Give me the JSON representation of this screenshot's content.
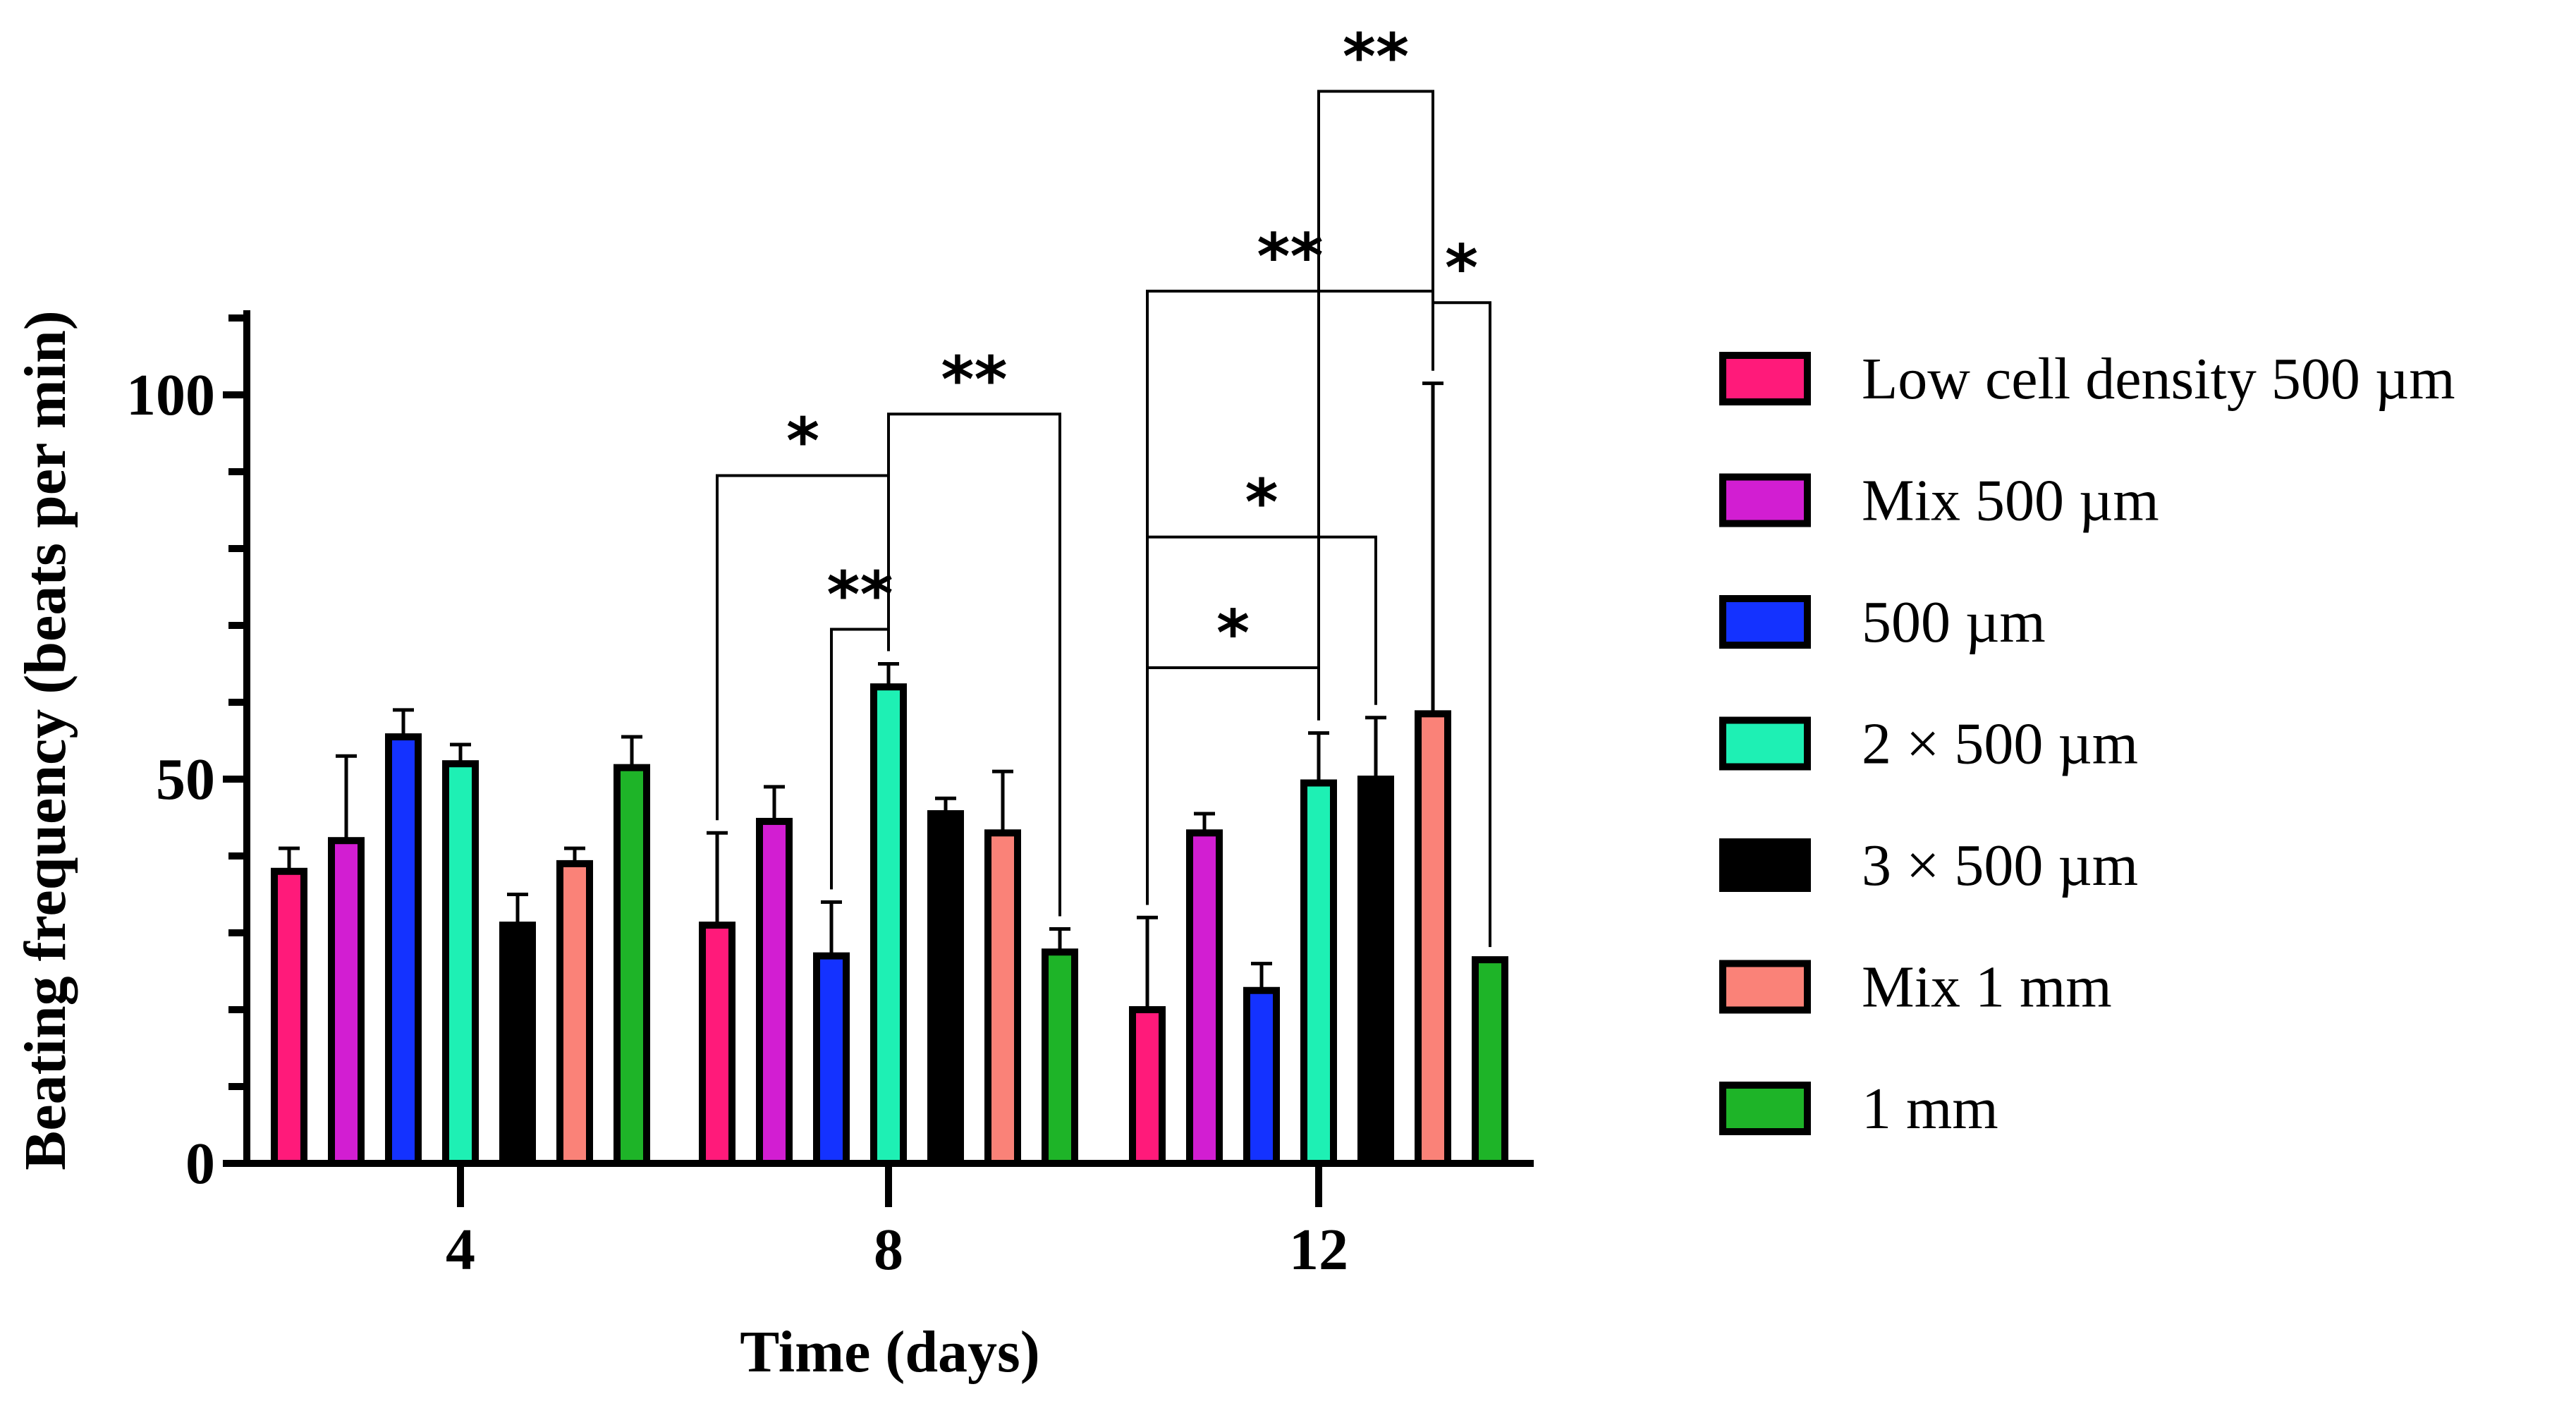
{
  "chart_data": {
    "type": "bar",
    "title": "",
    "xlabel": "Time (days)",
    "ylabel": "Beating frequency (beats per min)",
    "ylim": [
      0,
      110
    ],
    "yticks": [
      0,
      50,
      100
    ],
    "categories": [
      "4",
      "8",
      "12"
    ],
    "series": [
      {
        "name": "Low cell density 500 µm",
        "color": "#ff1a7a",
        "values": [
          38,
          31,
          20
        ],
        "errors": [
          3,
          12,
          12
        ]
      },
      {
        "name": "Mix 500 µm",
        "color": "#d21ed2",
        "values": [
          42,
          44.5,
          43
        ],
        "errors": [
          11,
          4.5,
          2.5
        ]
      },
      {
        "name": "500 µm",
        "color": "#1432ff",
        "values": [
          55.5,
          27,
          22.5
        ],
        "errors": [
          3.5,
          7,
          3.5
        ]
      },
      {
        "name": "2 × 500 µm",
        "color": "#1ef0b4",
        "values": [
          52,
          62,
          49.5
        ],
        "errors": [
          2.5,
          3,
          6.5
        ]
      },
      {
        "name": "3 × 500 µm",
        "color": "#000000",
        "values": [
          31,
          45.5,
          50
        ],
        "errors": [
          4,
          2,
          8
        ]
      },
      {
        "name": "Mix 1 mm",
        "color": "#fa8278",
        "values": [
          39,
          43,
          58.5
        ],
        "errors": [
          2,
          8,
          43
        ]
      },
      {
        "name": "1 mm",
        "color": "#1eb428",
        "values": [
          51.5,
          27.5,
          26.5
        ],
        "errors": [
          4,
          3,
          0
        ]
      }
    ],
    "significance": [
      {
        "label": "*",
        "category": "8",
        "from": 0,
        "to": 3,
        "y": 89.5
      },
      {
        "label": "**",
        "category": "8",
        "from": 3,
        "to": 6,
        "y": 97.5
      },
      {
        "label": "**",
        "category": "8",
        "from": 2,
        "to": 3,
        "y": 69.5
      },
      {
        "label": "**",
        "category": "12",
        "from": 0,
        "to": 5,
        "y": 113.5
      },
      {
        "label": "**",
        "category": "12",
        "from": 3,
        "to": 5,
        "y": 139.5
      },
      {
        "label": "*",
        "category": "12",
        "from": 5,
        "to": 6,
        "y": 112
      },
      {
        "label": "*",
        "category": "12",
        "from": 0,
        "to": 4,
        "y": 81.5
      },
      {
        "label": "*",
        "category": "12",
        "from": 0,
        "to": 3,
        "y": 64.5
      }
    ]
  }
}
